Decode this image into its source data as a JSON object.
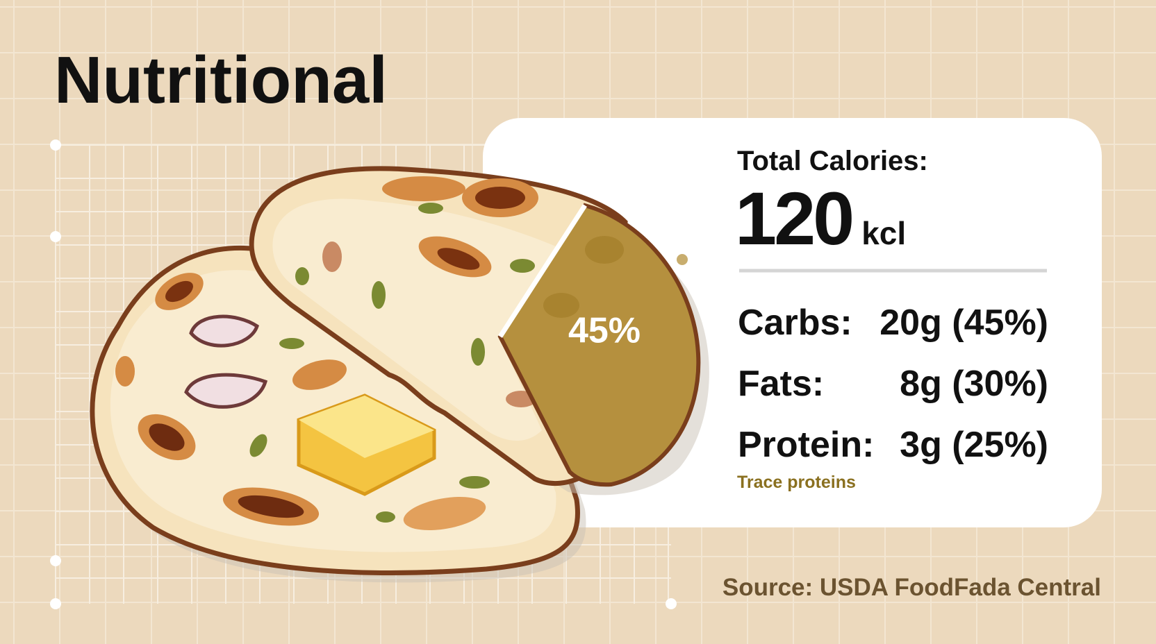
{
  "title": "Nutritional",
  "card": {
    "total_label": "Total Calories:",
    "total_value": "120",
    "total_unit": "kcl",
    "rows": [
      {
        "label": "Carbs:",
        "value": "20g (45%)"
      },
      {
        "label": "Fats:",
        "value": "8g (30%)"
      },
      {
        "label": "Protein:",
        "value": "3g (25%)"
      }
    ],
    "note": "Trace proteins"
  },
  "slice_label": "45%",
  "source": "Source: USDA FoodFada Central"
}
